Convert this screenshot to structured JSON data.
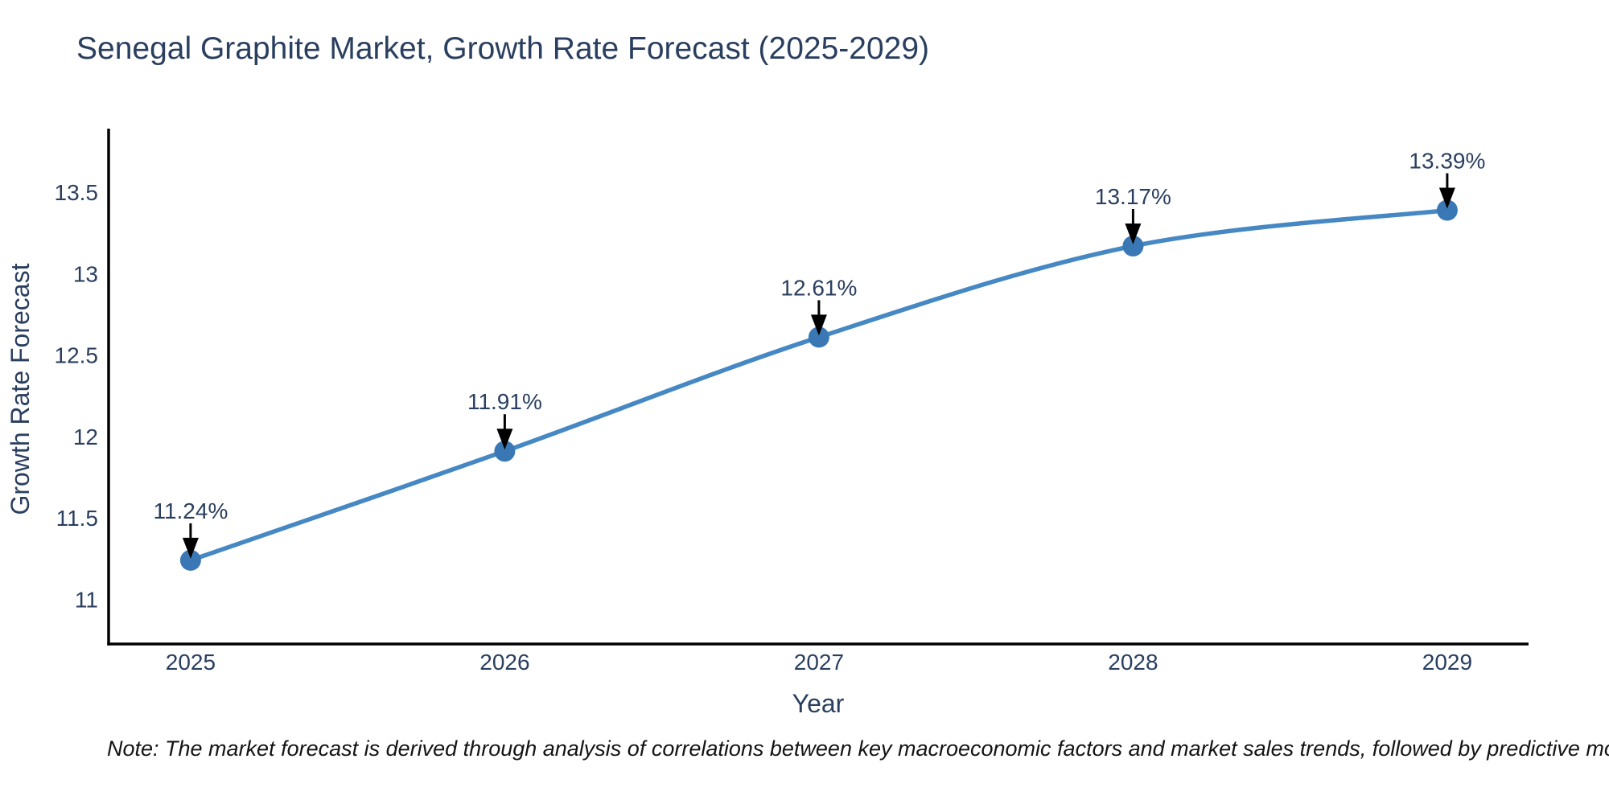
{
  "title": "Senegal Graphite Market, Growth Rate Forecast (2025-2029)",
  "note": "Note: The market forecast is derived through analysis of correlations between key macroeconomic factors and market sales trends, followed by predictive modeling to project future sal",
  "axes": {
    "x_title": "Year",
    "y_title": "Growth Rate Forecast",
    "x_tick_labels": [
      "2025",
      "2026",
      "2027",
      "2028",
      "2029"
    ],
    "y_tick_labels": [
      "11",
      "11.5",
      "12",
      "12.5",
      "13",
      "13.5"
    ]
  },
  "colors": {
    "background": "#ffffff",
    "title": "#2a3f5f",
    "tick": "#2a3f5f",
    "axis": "#000000",
    "line": "#4688c3",
    "marker": "#3a78b5",
    "arrow": "#000000",
    "annotation": "#2a3f5f",
    "note": "#141414"
  },
  "chart_data": {
    "type": "line",
    "title": "Senegal Graphite Market, Growth Rate Forecast (2025-2029)",
    "xlabel": "Year",
    "ylabel": "Growth Rate Forecast",
    "x": [
      2025,
      2026,
      2027,
      2028,
      2029
    ],
    "series": [
      {
        "name": "Growth Rate Forecast",
        "values": [
          11.24,
          11.91,
          12.61,
          13.17,
          13.39
        ]
      }
    ],
    "point_labels": [
      "11.24%",
      "11.91%",
      "12.61%",
      "13.17%",
      "13.39%"
    ],
    "yticks": [
      11,
      11.5,
      12,
      12.5,
      13,
      13.5
    ],
    "ylim": [
      10.726,
      13.891
    ],
    "xlim": [
      2024.739,
      2029.259
    ],
    "grid": false,
    "legend": false,
    "line_shape": "spline",
    "markers": true,
    "annotations": "percentage value above each point with downward black arrow"
  }
}
